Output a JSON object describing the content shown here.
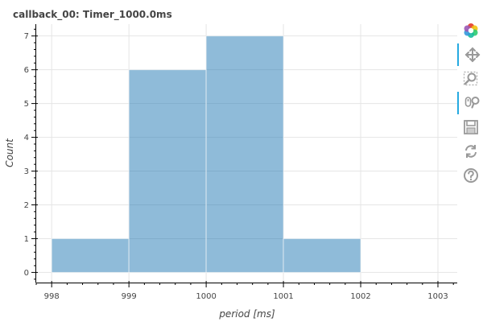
{
  "chart_data": {
    "type": "bar",
    "title": "callback_00: Timer_1000.0ms",
    "xlabel": "period [ms]",
    "ylabel": "Count",
    "bins": [
      {
        "left": 998,
        "right": 999,
        "count": 1
      },
      {
        "left": 999,
        "right": 1000,
        "count": 6
      },
      {
        "left": 1000,
        "right": 1001,
        "count": 7
      },
      {
        "left": 1001,
        "right": 1002,
        "count": 1
      }
    ],
    "xlim": [
      997.8,
      1003.25
    ],
    "ylim": [
      -0.3,
      7.35
    ],
    "xticks": [
      998,
      999,
      1000,
      1001,
      1002,
      1003
    ],
    "yticks": [
      0,
      1,
      2,
      3,
      4,
      5,
      6,
      7
    ],
    "bar_color": "#1f77b4",
    "grid": true
  },
  "toolbar": {
    "tools": [
      {
        "icon": "bokeh-logo-icon",
        "active": false
      },
      {
        "icon": "pan-icon",
        "active": true
      },
      {
        "icon": "box-zoom-icon",
        "active": false
      },
      {
        "icon": "wheel-zoom-icon",
        "active": true
      },
      {
        "icon": "save-icon",
        "active": false
      },
      {
        "icon": "reset-icon",
        "active": false
      },
      {
        "icon": "help-icon",
        "active": false
      }
    ]
  }
}
